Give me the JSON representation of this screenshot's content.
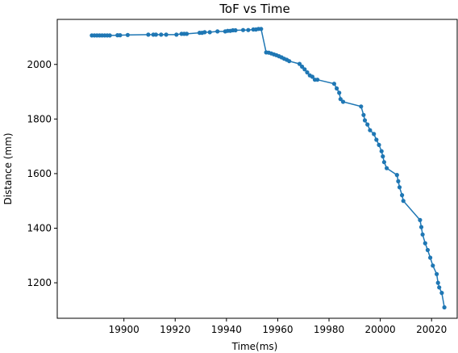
{
  "chart_data": {
    "type": "line",
    "title": "ToF vs Time",
    "xlabel": "Time(ms)",
    "ylabel": "Distance (mm)",
    "xlim": [
      19874,
      20030
    ],
    "ylim": [
      1070,
      2165
    ],
    "xticks": [
      19900,
      19920,
      19940,
      19960,
      19980,
      20000,
      20020
    ],
    "yticks": [
      1200,
      1400,
      1600,
      1800,
      2000
    ],
    "grid": false,
    "color": "#1f77b4",
    "marker": "circle",
    "series": [
      {
        "x": [
          19887.5,
          19888.5,
          19889.5,
          19890.5,
          19891.5,
          19892.5,
          19893.5,
          19894.5,
          19897.5,
          19898.5,
          19901.5,
          19909.5,
          19911.5,
          19912.5,
          19914.5,
          19916.5,
          19920.5,
          19922.5,
          19923.5,
          19924.5,
          19929.5,
          19930.5,
          19931.5,
          19933.5,
          19936.5,
          19939.5,
          19940.5,
          19941.5,
          19942.5,
          19943.5,
          19946.5,
          19948.5,
          19950.5,
          19951.5,
          19952.5,
          19953.5,
          19955.5,
          19956.5,
          19957.5,
          19958.5,
          19959.5,
          19960.5,
          19961.5,
          19962.5,
          19963.5,
          19964.5,
          19968.5,
          19969.5,
          19970.5,
          19971.5,
          19972.5,
          19973.5,
          19974.5,
          19975.5,
          19982.0,
          19983.0,
          19984.0,
          19984.5,
          19985.5,
          19992.5,
          19993.5,
          19994.0,
          19995.0,
          19996.0,
          19997.5,
          19998.5,
          19999.5,
          20000.5,
          20001.0,
          20001.5,
          20002.5,
          20006.5,
          20007.0,
          20007.5,
          20008.5,
          20009.0,
          20015.5,
          20016.0,
          20016.5,
          20017.5,
          20018.5,
          20019.5,
          20020.5,
          20022.0,
          20022.5,
          20023.0,
          20024.0,
          20025.0
        ],
        "y": [
          2106,
          2106,
          2106,
          2106,
          2106,
          2106,
          2106,
          2106,
          2107,
          2107,
          2108,
          2109,
          2109,
          2109,
          2109,
          2109,
          2109,
          2112,
          2112,
          2112,
          2116,
          2116,
          2118,
          2118,
          2121,
          2121,
          2123,
          2123,
          2125,
          2125,
          2126,
          2126,
          2128,
          2128,
          2130,
          2130,
          2044,
          2043,
          2040,
          2037,
          2034,
          2030,
          2026,
          2021,
          2017,
          2012,
          2002,
          1992,
          1982,
          1971,
          1960,
          1955,
          1944,
          1944,
          1929,
          1912,
          1896,
          1873,
          1863,
          1846,
          1815,
          1795,
          1780,
          1759,
          1745,
          1724,
          1705,
          1682,
          1663,
          1642,
          1620,
          1595,
          1572,
          1550,
          1521,
          1500,
          1430,
          1404,
          1377,
          1345,
          1320,
          1292,
          1263,
          1232,
          1200,
          1183,
          1163,
          1110
        ]
      }
    ]
  }
}
